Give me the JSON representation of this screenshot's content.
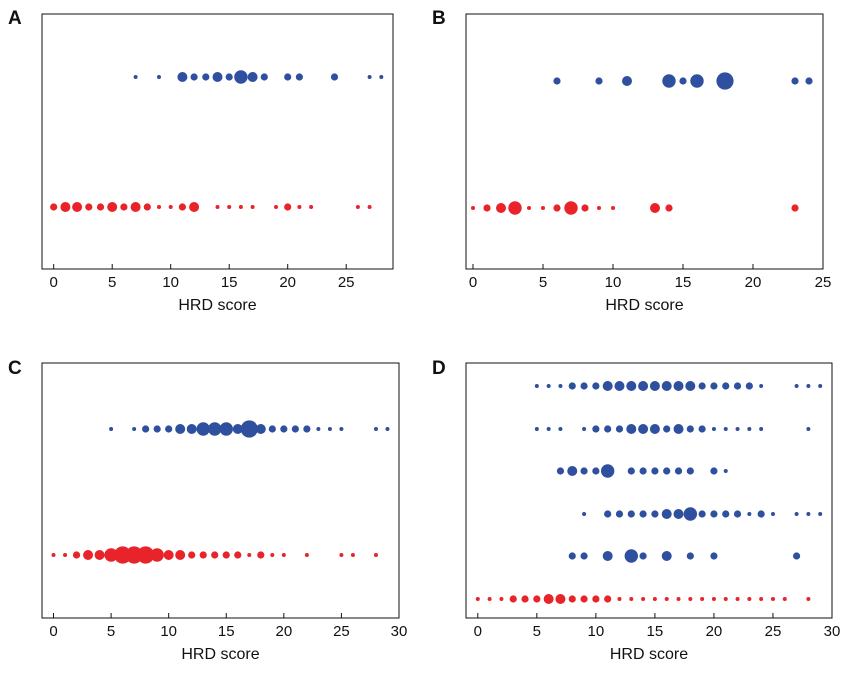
{
  "colors": {
    "blue": "#2f4f9f",
    "red": "#e8242a"
  },
  "chart_data": [
    {
      "panel": "A",
      "type": "scatter",
      "xlabel": "HRD score",
      "xlim": [
        -1,
        29
      ],
      "xticks": [
        0,
        5,
        10,
        15,
        20,
        25
      ],
      "rows": [
        {
          "color": "blue",
          "points": [
            [
              7,
              1
            ],
            [
              9,
              1
            ],
            [
              11,
              3
            ],
            [
              12,
              2
            ],
            [
              13,
              2
            ],
            [
              14,
              3
            ],
            [
              15,
              2
            ],
            [
              16,
              4
            ],
            [
              17,
              3
            ],
            [
              18,
              2
            ],
            [
              20,
              2
            ],
            [
              21,
              2
            ],
            [
              24,
              2
            ],
            [
              27,
              1
            ],
            [
              28,
              1
            ]
          ]
        },
        {
          "color": "red",
          "points": [
            [
              0,
              2
            ],
            [
              1,
              3
            ],
            [
              2,
              3
            ],
            [
              3,
              2
            ],
            [
              4,
              2
            ],
            [
              5,
              3
            ],
            [
              6,
              2
            ],
            [
              7,
              3
            ],
            [
              8,
              2
            ],
            [
              9,
              1
            ],
            [
              10,
              1
            ],
            [
              11,
              2
            ],
            [
              12,
              3
            ],
            [
              14,
              1
            ],
            [
              15,
              1
            ],
            [
              16,
              1
            ],
            [
              17,
              1
            ],
            [
              19,
              1
            ],
            [
              20,
              2
            ],
            [
              21,
              1
            ],
            [
              22,
              1
            ],
            [
              26,
              1
            ],
            [
              27,
              1
            ]
          ]
        }
      ]
    },
    {
      "panel": "B",
      "type": "scatter",
      "xlabel": "HRD score",
      "xlim": [
        -0.5,
        25
      ],
      "xticks": [
        0,
        5,
        10,
        15,
        20,
        25
      ],
      "rows": [
        {
          "color": "blue",
          "points": [
            [
              6,
              2
            ],
            [
              9,
              2
            ],
            [
              11,
              3
            ],
            [
              14,
              4
            ],
            [
              15,
              2
            ],
            [
              16,
              4
            ],
            [
              18,
              5
            ],
            [
              23,
              2
            ],
            [
              24,
              2
            ]
          ]
        },
        {
          "color": "red",
          "points": [
            [
              0,
              1
            ],
            [
              1,
              2
            ],
            [
              2,
              3
            ],
            [
              3,
              4
            ],
            [
              4,
              1
            ],
            [
              5,
              1
            ],
            [
              6,
              2
            ],
            [
              7,
              4
            ],
            [
              8,
              2
            ],
            [
              9,
              1
            ],
            [
              10,
              1
            ],
            [
              13,
              3
            ],
            [
              14,
              2
            ],
            [
              23,
              2
            ]
          ]
        }
      ]
    },
    {
      "panel": "C",
      "type": "scatter",
      "xlabel": "HRD score",
      "xlim": [
        -1,
        30
      ],
      "xticks": [
        0,
        5,
        10,
        15,
        20,
        25,
        30
      ],
      "rows": [
        {
          "color": "blue",
          "points": [
            [
              5,
              1
            ],
            [
              7,
              1
            ],
            [
              8,
              2
            ],
            [
              9,
              2
            ],
            [
              10,
              2
            ],
            [
              11,
              3
            ],
            [
              12,
              3
            ],
            [
              13,
              4
            ],
            [
              14,
              4
            ],
            [
              15,
              4
            ],
            [
              16,
              3
            ],
            [
              17,
              5
            ],
            [
              18,
              3
            ],
            [
              19,
              2
            ],
            [
              20,
              2
            ],
            [
              21,
              2
            ],
            [
              22,
              2
            ],
            [
              23,
              1
            ],
            [
              24,
              1
            ],
            [
              25,
              1
            ],
            [
              28,
              1
            ],
            [
              29,
              1
            ]
          ]
        },
        {
          "color": "red",
          "points": [
            [
              0,
              1
            ],
            [
              1,
              1
            ],
            [
              2,
              2
            ],
            [
              3,
              3
            ],
            [
              4,
              3
            ],
            [
              5,
              4
            ],
            [
              6,
              5
            ],
            [
              7,
              5
            ],
            [
              8,
              5
            ],
            [
              9,
              4
            ],
            [
              10,
              3
            ],
            [
              11,
              3
            ],
            [
              12,
              2
            ],
            [
              13,
              2
            ],
            [
              14,
              2
            ],
            [
              15,
              2
            ],
            [
              16,
              2
            ],
            [
              17,
              1
            ],
            [
              18,
              2
            ],
            [
              19,
              1
            ],
            [
              20,
              1
            ],
            [
              22,
              1
            ],
            [
              25,
              1
            ],
            [
              26,
              1
            ],
            [
              28,
              1
            ]
          ]
        }
      ]
    },
    {
      "panel": "D",
      "type": "scatter",
      "xlabel": "HRD score",
      "xlim": [
        -1,
        30
      ],
      "xticks": [
        0,
        5,
        10,
        15,
        20,
        25,
        30
      ],
      "rows": [
        {
          "color": "blue",
          "points": [
            [
              5,
              1
            ],
            [
              6,
              1
            ],
            [
              7,
              1
            ],
            [
              8,
              2
            ],
            [
              9,
              2
            ],
            [
              10,
              2
            ],
            [
              11,
              3
            ],
            [
              12,
              3
            ],
            [
              13,
              3
            ],
            [
              14,
              3
            ],
            [
              15,
              3
            ],
            [
              16,
              3
            ],
            [
              17,
              3
            ],
            [
              18,
              3
            ],
            [
              19,
              2
            ],
            [
              20,
              2
            ],
            [
              21,
              2
            ],
            [
              22,
              2
            ],
            [
              23,
              2
            ],
            [
              24,
              1
            ],
            [
              27,
              1
            ],
            [
              28,
              1
            ],
            [
              29,
              1
            ]
          ]
        },
        {
          "color": "blue",
          "points": [
            [
              5,
              1
            ],
            [
              6,
              1
            ],
            [
              7,
              1
            ],
            [
              9,
              1
            ],
            [
              10,
              2
            ],
            [
              11,
              2
            ],
            [
              12,
              2
            ],
            [
              13,
              3
            ],
            [
              14,
              3
            ],
            [
              15,
              3
            ],
            [
              16,
              2
            ],
            [
              17,
              3
            ],
            [
              18,
              2
            ],
            [
              19,
              2
            ],
            [
              20,
              1
            ],
            [
              21,
              1
            ],
            [
              22,
              1
            ],
            [
              23,
              1
            ],
            [
              24,
              1
            ],
            [
              28,
              1
            ]
          ]
        },
        {
          "color": "blue",
          "points": [
            [
              7,
              2
            ],
            [
              8,
              3
            ],
            [
              9,
              2
            ],
            [
              10,
              2
            ],
            [
              11,
              4
            ],
            [
              13,
              2
            ],
            [
              14,
              2
            ],
            [
              15,
              2
            ],
            [
              16,
              2
            ],
            [
              17,
              2
            ],
            [
              18,
              2
            ],
            [
              20,
              2
            ],
            [
              21,
              1
            ]
          ]
        },
        {
          "color": "blue",
          "points": [
            [
              9,
              1
            ],
            [
              11,
              2
            ],
            [
              12,
              2
            ],
            [
              13,
              2
            ],
            [
              14,
              2
            ],
            [
              15,
              2
            ],
            [
              16,
              3
            ],
            [
              17,
              3
            ],
            [
              18,
              4
            ],
            [
              19,
              2
            ],
            [
              20,
              2
            ],
            [
              21,
              2
            ],
            [
              22,
              2
            ],
            [
              23,
              1
            ],
            [
              24,
              2
            ],
            [
              25,
              1
            ],
            [
              27,
              1
            ],
            [
              28,
              1
            ],
            [
              29,
              1
            ]
          ]
        },
        {
          "color": "blue",
          "points": [
            [
              8,
              2
            ],
            [
              9,
              2
            ],
            [
              11,
              3
            ],
            [
              13,
              4
            ],
            [
              14,
              2
            ],
            [
              16,
              3
            ],
            [
              18,
              2
            ],
            [
              20,
              2
            ],
            [
              27,
              2
            ]
          ]
        },
        {
          "color": "red",
          "points": [
            [
              0,
              1
            ],
            [
              1,
              1
            ],
            [
              2,
              1
            ],
            [
              3,
              2
            ],
            [
              4,
              2
            ],
            [
              5,
              2
            ],
            [
              6,
              3
            ],
            [
              7,
              3
            ],
            [
              8,
              2
            ],
            [
              9,
              2
            ],
            [
              10,
              2
            ],
            [
              11,
              2
            ],
            [
              12,
              1
            ],
            [
              13,
              1
            ],
            [
              14,
              1
            ],
            [
              15,
              1
            ],
            [
              16,
              1
            ],
            [
              17,
              1
            ],
            [
              18,
              1
            ],
            [
              19,
              1
            ],
            [
              20,
              1
            ],
            [
              21,
              1
            ],
            [
              22,
              1
            ],
            [
              23,
              1
            ],
            [
              24,
              1
            ],
            [
              25,
              1
            ],
            [
              26,
              1
            ],
            [
              28,
              1
            ]
          ]
        }
      ]
    }
  ]
}
